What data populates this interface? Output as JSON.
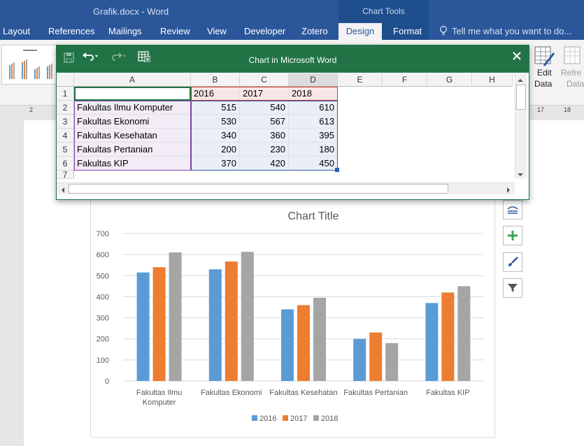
{
  "window": {
    "title": "Grafik.docx  -  Word",
    "context_group": "Chart Tools"
  },
  "tabs": [
    "Layout",
    "References",
    "Mailings",
    "Review",
    "View",
    "Developer",
    "Zotero",
    "Design",
    "Format"
  ],
  "active_tab": "Design",
  "tell_me": "Tell me what you want to do...",
  "ribbon": {
    "edit_data": "Edit",
    "edit_data2": "Data",
    "refresh": "Refre",
    "refresh2": "Data"
  },
  "ruler": {
    "left": "2",
    "right1": "17",
    "right2": "18"
  },
  "sheet": {
    "title": "Chart in Microsoft Word",
    "columns": [
      "A",
      "B",
      "C",
      "D",
      "E",
      "F",
      "G",
      "H"
    ],
    "row_numbers": [
      "1",
      "2",
      "3",
      "4",
      "5",
      "6",
      "7"
    ],
    "header": [
      "",
      "2016",
      "2017",
      "2018"
    ],
    "rows": [
      [
        "Fakultas Ilmu Komputer",
        "515",
        "540",
        "610"
      ],
      [
        "Fakultas Ekonomi",
        "530",
        "567",
        "613"
      ],
      [
        "Fakultas Kesehatan",
        "340",
        "360",
        "395"
      ],
      [
        "Fakultas Pertanian",
        "200",
        "230",
        "180"
      ],
      [
        "Fakultas KIP",
        "370",
        "420",
        "450"
      ]
    ]
  },
  "chart_data": {
    "type": "bar",
    "title": "Chart Title",
    "categories": [
      "Fakultas Ilmu Komputer",
      "Fakultas Ekonomi",
      "Fakultas Kesehatan",
      "Fakultas Pertanian",
      "Fakultas KIP"
    ],
    "series": [
      {
        "name": "2016",
        "values": [
          515,
          530,
          340,
          200,
          370
        ],
        "color": "#5b9bd5"
      },
      {
        "name": "2017",
        "values": [
          540,
          567,
          360,
          230,
          420
        ],
        "color": "#ed7d31"
      },
      {
        "name": "2018",
        "values": [
          610,
          613,
          395,
          180,
          450
        ],
        "color": "#a5a5a5"
      }
    ],
    "ylim": [
      0,
      700
    ],
    "yticks": [
      "0",
      "100",
      "200",
      "300",
      "400",
      "500",
      "600",
      "700"
    ],
    "grid": true,
    "legend": "bottom"
  },
  "colors": {
    "word_blue": "#2b579a",
    "excel_green": "#217346"
  }
}
